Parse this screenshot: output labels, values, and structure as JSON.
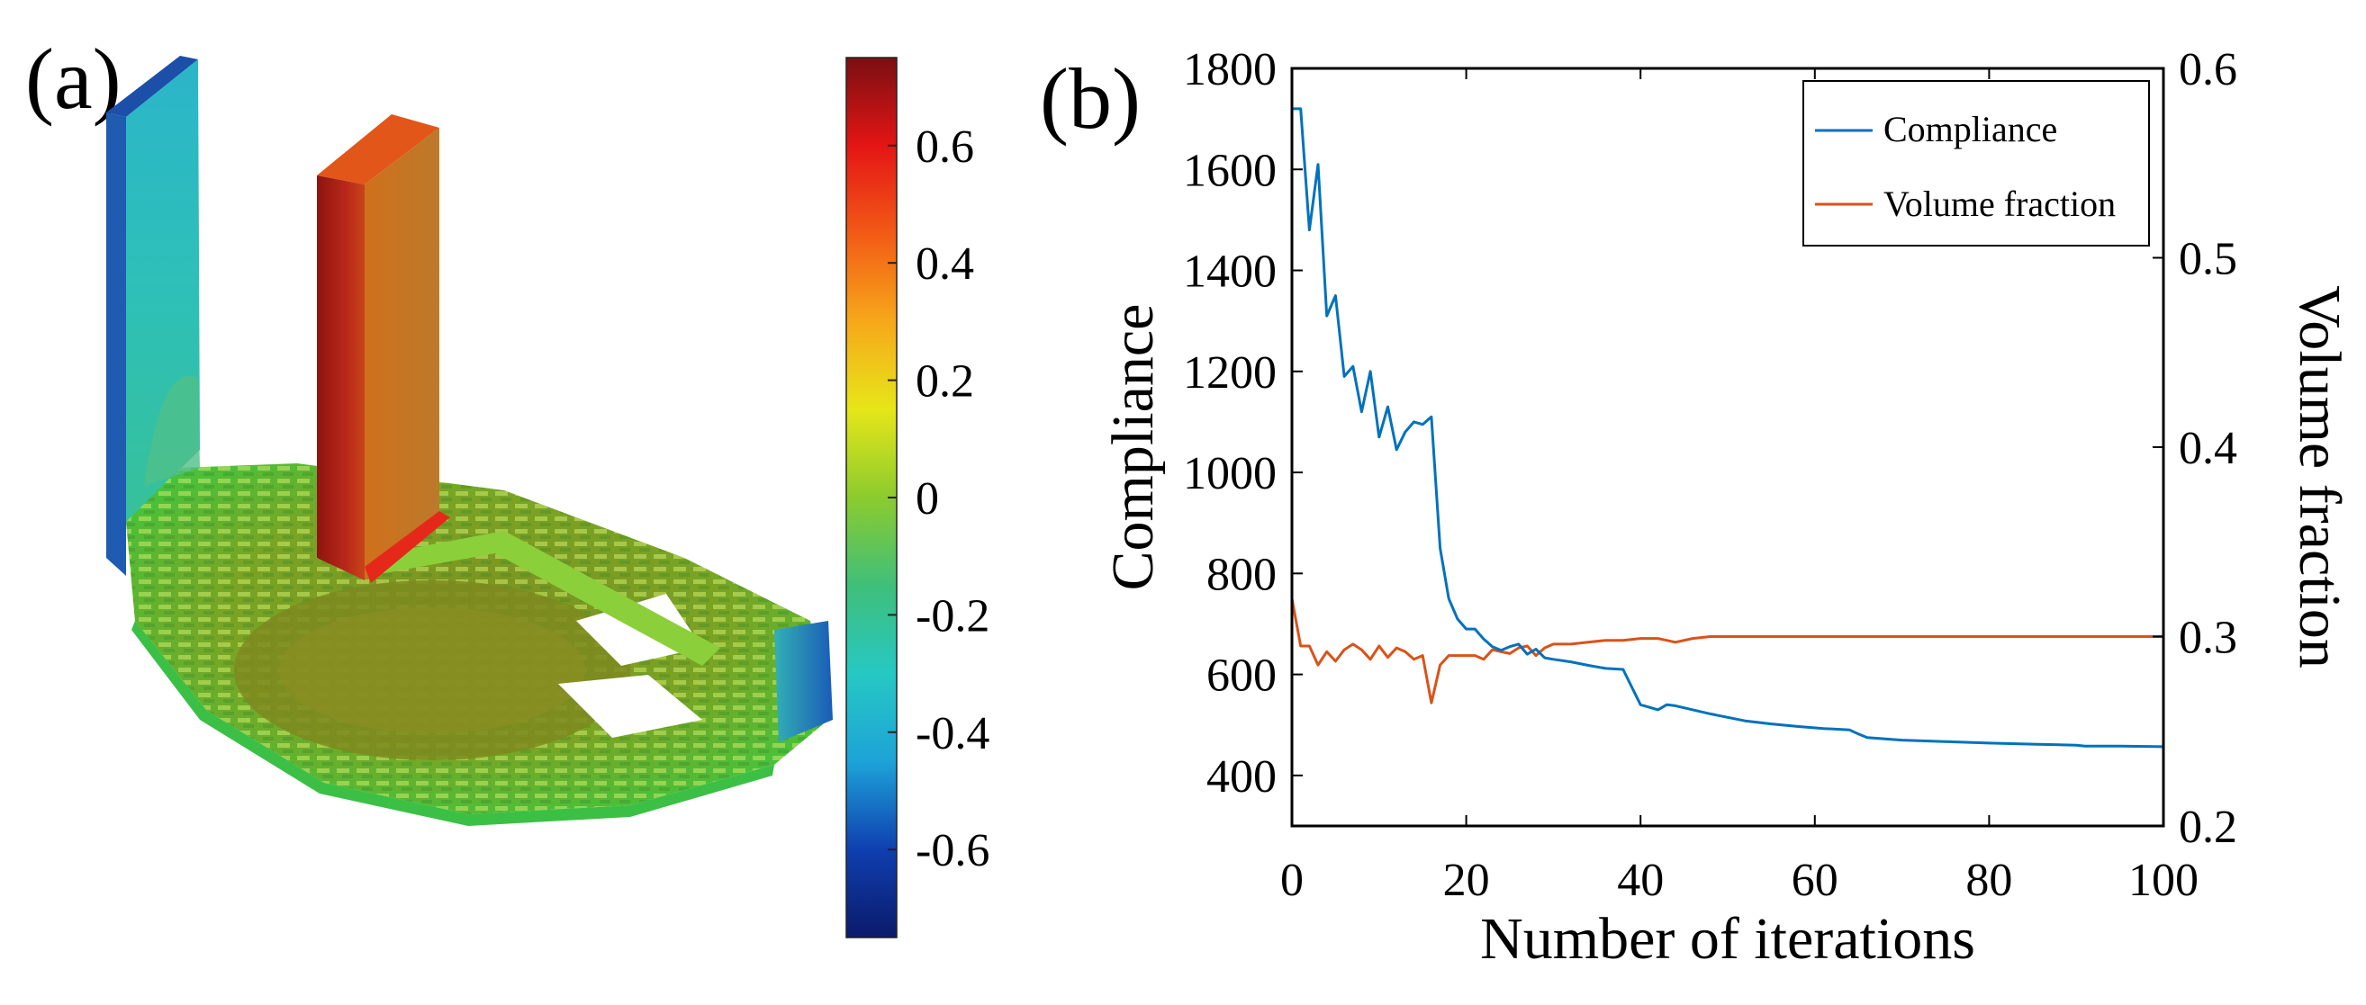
{
  "panel_a": {
    "label": "(a)",
    "colorbar": {
      "min": -0.75,
      "max": 0.75,
      "ticks": [
        0.6,
        0.4,
        0.2,
        0,
        -0.2,
        -0.4,
        -0.6
      ],
      "tick_labels": [
        "0.6",
        "0.4",
        "0.2",
        "0",
        "-0.2",
        "-0.4",
        "-0.6"
      ],
      "colormap": [
        "#0b1a6b",
        "#0f3fb0",
        "#1da3d8",
        "#26c8c4",
        "#3fbf7a",
        "#8ccb2e",
        "#e6e619",
        "#f7a81a",
        "#f25a16",
        "#e41515",
        "#7a0f12"
      ]
    },
    "colors": {
      "left_wall": "#2ec0b8",
      "left_wall_edge": "#1d5fb5",
      "right_wall_front": "#a61c14",
      "right_wall_side": "#c7661e",
      "right_wall_top": "#e84c1a",
      "base_dark": "#6f8f1e",
      "base_light": "#49c43a",
      "base_mid": "#8dc92e",
      "right_tip": "#1f6fc0"
    }
  },
  "panel_b": {
    "label": "(b)",
    "chart_data": {
      "type": "line",
      "title": "",
      "xlabel": "Number of iterations",
      "ylabel": "Compliance",
      "y2label": "Volume fraction",
      "xlim": [
        0,
        100
      ],
      "ylim": [
        300,
        1800
      ],
      "y2lim": [
        0.2,
        0.6
      ],
      "xticks": [
        0,
        20,
        40,
        60,
        80,
        100
      ],
      "xtick_labels": [
        "0",
        "20",
        "40",
        "60",
        "80",
        "100"
      ],
      "yticks": [
        400,
        600,
        800,
        1000,
        1200,
        1400,
        1600,
        1800
      ],
      "ytick_labels": [
        "400",
        "600",
        "800",
        "1000",
        "1200",
        "1400",
        "1600",
        "1800"
      ],
      "y2ticks": [
        0.2,
        0.3,
        0.4,
        0.5,
        0.6
      ],
      "y2tick_labels": [
        "0.2",
        "0.3",
        "0.4",
        "0.5",
        "0.6"
      ],
      "grid": false,
      "legend_position": "top-right",
      "series": [
        {
          "name": "Compliance",
          "axis": "left",
          "color": "#0072bd",
          "x": [
            0,
            1,
            2,
            3,
            4,
            5,
            6,
            7,
            8,
            9,
            10,
            11,
            12,
            13,
            14,
            15,
            16,
            17,
            18,
            19,
            20,
            21,
            22,
            23,
            24,
            25,
            26,
            27,
            28,
            29,
            30,
            32,
            34,
            36,
            38,
            40,
            41,
            42,
            43,
            44,
            46,
            48,
            50,
            52,
            55,
            58,
            61,
            64,
            65,
            66,
            70,
            75,
            80,
            85,
            90,
            91,
            95,
            100
          ],
          "y": [
            1720,
            1720,
            1480,
            1610,
            1310,
            1350,
            1190,
            1210,
            1120,
            1200,
            1070,
            1130,
            1045,
            1080,
            1100,
            1095,
            1110,
            850,
            750,
            710,
            690,
            690,
            670,
            655,
            648,
            655,
            660,
            640,
            650,
            633,
            630,
            625,
            618,
            612,
            610,
            540,
            535,
            530,
            540,
            538,
            530,
            522,
            515,
            508,
            502,
            497,
            493,
            490,
            482,
            475,
            470,
            467,
            464,
            462,
            460,
            458,
            458,
            457
          ]
        },
        {
          "name": "Volume fraction",
          "axis": "right",
          "color": "#d95319",
          "x": [
            0,
            1,
            2,
            3,
            4,
            5,
            6,
            7,
            8,
            9,
            10,
            11,
            12,
            13,
            14,
            15,
            16,
            17,
            18,
            19,
            20,
            21,
            22,
            23,
            24,
            25,
            26,
            27,
            28,
            29,
            30,
            32,
            34,
            36,
            38,
            40,
            42,
            43,
            44,
            46,
            48,
            50,
            60,
            70,
            80,
            90,
            100
          ],
          "y": [
            0.32,
            0.295,
            0.295,
            0.285,
            0.292,
            0.287,
            0.293,
            0.296,
            0.293,
            0.288,
            0.295,
            0.289,
            0.294,
            0.292,
            0.288,
            0.29,
            0.265,
            0.285,
            0.29,
            0.29,
            0.29,
            0.29,
            0.288,
            0.293,
            0.292,
            0.291,
            0.294,
            0.295,
            0.29,
            0.294,
            0.296,
            0.296,
            0.297,
            0.298,
            0.298,
            0.299,
            0.299,
            0.298,
            0.297,
            0.299,
            0.3,
            0.3,
            0.3,
            0.3,
            0.3,
            0.3,
            0.3
          ]
        }
      ]
    }
  }
}
